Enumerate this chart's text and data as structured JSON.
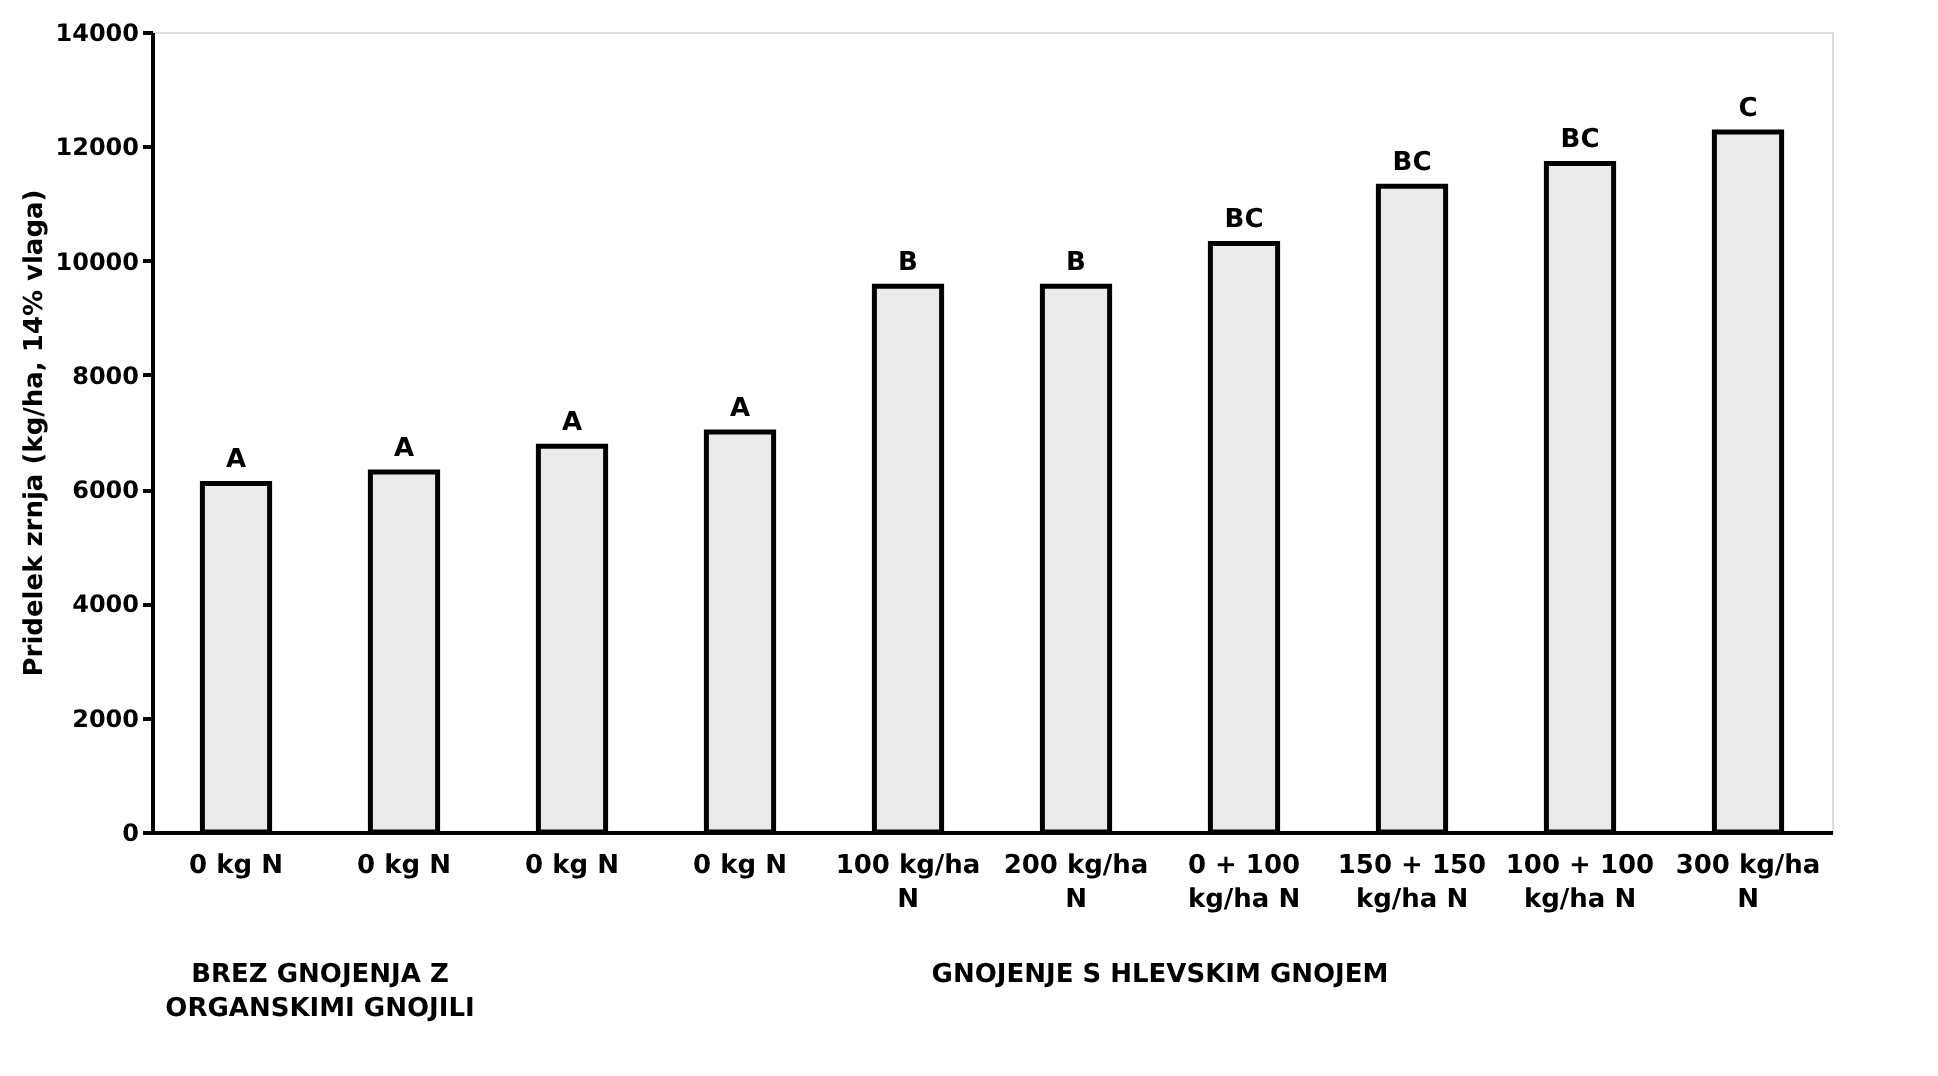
{
  "chart_data": {
    "type": "bar",
    "ylabel": "Pridelek zrnja (kg/ha, 14% vlaga)",
    "categories": [
      "0 kg N",
      "0 kg N",
      "0 kg N",
      "0 kg N",
      "100 kg/ha N",
      "200 kg/ha N",
      "0 + 100 kg/ha N",
      "150 + 150 kg/ha N",
      "100 + 100 kg/ha N",
      "300 kg/ha N"
    ],
    "values": [
      6100,
      6300,
      6750,
      7000,
      9550,
      9550,
      10300,
      11300,
      11700,
      12250
    ],
    "value_labels": [
      "A",
      "A",
      "A",
      "A",
      "B",
      "B",
      "BC",
      "BC",
      "BC",
      "C"
    ],
    "color": "#ebebeb",
    "ylim": [
      0,
      14000
    ],
    "yticks": [
      0,
      2000,
      4000,
      6000,
      8000,
      10000,
      12000,
      14000
    ],
    "grid": false,
    "annotations": [
      "BREZ GNOJENJA Z ORGANSKIMI GNOJILI",
      "GNOJENJE S HLEVSKIM GNOJEM"
    ]
  }
}
